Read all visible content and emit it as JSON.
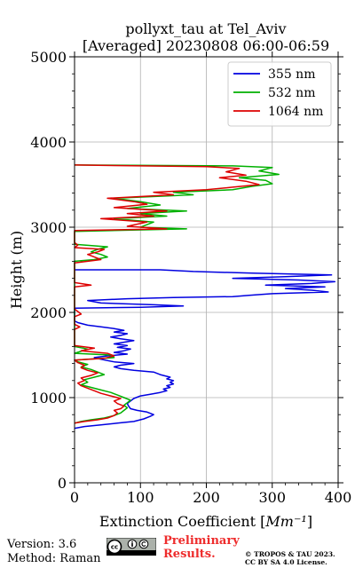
{
  "chart_data": {
    "type": "line",
    "title": "pollyxt_tau at Tel_Aviv",
    "subtitle": "[Averaged] 20230808 06:00-06:59",
    "xlabel": "Extinction Coefficient [Mm⁻¹]",
    "ylabel": "Height (m)",
    "xlim": [
      0,
      400
    ],
    "ylim": [
      0,
      5000
    ],
    "x_ticks": [
      0,
      100,
      200,
      300,
      400
    ],
    "y_ticks": [
      0,
      1000,
      2000,
      3000,
      4000,
      5000
    ],
    "grid": true,
    "legend_position": "top-right",
    "series": [
      {
        "name": "355 nm",
        "color": "#0000e0",
        "points": [
          [
            0,
            640
          ],
          [
            15,
            660
          ],
          [
            40,
            680
          ],
          [
            65,
            700
          ],
          [
            90,
            720
          ],
          [
            105,
            750
          ],
          [
            115,
            780
          ],
          [
            120,
            800
          ],
          [
            110,
            830
          ],
          [
            95,
            850
          ],
          [
            85,
            870
          ],
          [
            82,
            900
          ],
          [
            80,
            930
          ],
          [
            85,
            960
          ],
          [
            90,
            990
          ],
          [
            100,
            1020
          ],
          [
            115,
            1040
          ],
          [
            130,
            1060
          ],
          [
            140,
            1080
          ],
          [
            135,
            1100
          ],
          [
            145,
            1120
          ],
          [
            140,
            1140
          ],
          [
            150,
            1160
          ],
          [
            145,
            1180
          ],
          [
            150,
            1200
          ],
          [
            140,
            1220
          ],
          [
            145,
            1240
          ],
          [
            130,
            1270
          ],
          [
            120,
            1300
          ],
          [
            90,
            1320
          ],
          [
            70,
            1340
          ],
          [
            60,
            1360
          ],
          [
            70,
            1380
          ],
          [
            90,
            1400
          ],
          [
            60,
            1420
          ],
          [
            40,
            1450
          ],
          [
            30,
            1470
          ],
          [
            50,
            1490
          ],
          [
            80,
            1510
          ],
          [
            60,
            1530
          ],
          [
            75,
            1550
          ],
          [
            85,
            1570
          ],
          [
            65,
            1590
          ],
          [
            80,
            1610
          ],
          [
            60,
            1630
          ],
          [
            75,
            1650
          ],
          [
            90,
            1670
          ],
          [
            70,
            1690
          ],
          [
            55,
            1710
          ],
          [
            70,
            1730
          ],
          [
            80,
            1750
          ],
          [
            60,
            1770
          ],
          [
            75,
            1790
          ],
          [
            60,
            1810
          ],
          [
            40,
            1830
          ],
          [
            20,
            1850
          ],
          [
            5,
            1880
          ],
          [
            0,
            1900
          ],
          [
            0,
            2050
          ],
          [
            100,
            2060
          ],
          [
            165,
            2075
          ],
          [
            120,
            2090
          ],
          [
            40,
            2110
          ],
          [
            20,
            2140
          ],
          [
            80,
            2160
          ],
          [
            150,
            2175
          ],
          [
            240,
            2185
          ],
          [
            265,
            2200
          ],
          [
            300,
            2220
          ],
          [
            385,
            2240
          ],
          [
            360,
            2260
          ],
          [
            320,
            2280
          ],
          [
            380,
            2300
          ],
          [
            290,
            2320
          ],
          [
            360,
            2340
          ],
          [
            395,
            2360
          ],
          [
            340,
            2380
          ],
          [
            240,
            2400
          ],
          [
            320,
            2420
          ],
          [
            390,
            2440
          ],
          [
            270,
            2460
          ],
          [
            180,
            2480
          ],
          [
            130,
            2500
          ],
          [
            0,
            2500
          ]
        ]
      },
      {
        "name": "532 nm",
        "color": "#00b000",
        "points": [
          [
            0,
            700
          ],
          [
            10,
            720
          ],
          [
            25,
            740
          ],
          [
            45,
            760
          ],
          [
            60,
            790
          ],
          [
            70,
            820
          ],
          [
            75,
            850
          ],
          [
            80,
            880
          ],
          [
            75,
            910
          ],
          [
            80,
            940
          ],
          [
            85,
            970
          ],
          [
            75,
            1000
          ],
          [
            65,
            1030
          ],
          [
            55,
            1060
          ],
          [
            40,
            1090
          ],
          [
            25,
            1120
          ],
          [
            10,
            1150
          ],
          [
            20,
            1180
          ],
          [
            15,
            1210
          ],
          [
            30,
            1240
          ],
          [
            45,
            1270
          ],
          [
            35,
            1300
          ],
          [
            25,
            1330
          ],
          [
            10,
            1360
          ],
          [
            20,
            1390
          ],
          [
            5,
            1420
          ],
          [
            0,
            1440
          ],
          [
            60,
            1470
          ],
          [
            55,
            1500
          ],
          [
            0,
            1520
          ],
          [
            20,
            1570
          ],
          [
            0,
            1600
          ],
          [
            0,
            2600
          ],
          [
            30,
            2620
          ],
          [
            50,
            2650
          ],
          [
            40,
            2680
          ],
          [
            25,
            2710
          ],
          [
            35,
            2740
          ],
          [
            50,
            2770
          ],
          [
            0,
            2800
          ],
          [
            0,
            2950
          ],
          [
            170,
            2980
          ],
          [
            100,
            3000
          ],
          [
            120,
            3060
          ],
          [
            60,
            3100
          ],
          [
            140,
            3130
          ],
          [
            100,
            3160
          ],
          [
            170,
            3190
          ],
          [
            80,
            3220
          ],
          [
            130,
            3260
          ],
          [
            100,
            3300
          ],
          [
            60,
            3340
          ],
          [
            180,
            3380
          ],
          [
            150,
            3410
          ],
          [
            240,
            3440
          ],
          [
            270,
            3480
          ],
          [
            300,
            3510
          ],
          [
            290,
            3550
          ],
          [
            250,
            3580
          ],
          [
            310,
            3620
          ],
          [
            280,
            3660
          ],
          [
            300,
            3700
          ],
          [
            240,
            3720
          ],
          [
            0,
            3730
          ]
        ]
      },
      {
        "name": "1064 nm",
        "color": "#dd0000",
        "points": [
          [
            0,
            700
          ],
          [
            15,
            720
          ],
          [
            35,
            740
          ],
          [
            50,
            760
          ],
          [
            60,
            790
          ],
          [
            65,
            820
          ],
          [
            60,
            850
          ],
          [
            70,
            870
          ],
          [
            75,
            900
          ],
          [
            65,
            930
          ],
          [
            60,
            960
          ],
          [
            70,
            990
          ],
          [
            55,
            1020
          ],
          [
            40,
            1050
          ],
          [
            30,
            1080
          ],
          [
            20,
            1110
          ],
          [
            10,
            1140
          ],
          [
            5,
            1170
          ],
          [
            15,
            1200
          ],
          [
            10,
            1230
          ],
          [
            25,
            1260
          ],
          [
            35,
            1290
          ],
          [
            20,
            1320
          ],
          [
            10,
            1350
          ],
          [
            15,
            1380
          ],
          [
            5,
            1410
          ],
          [
            0,
            1440
          ],
          [
            45,
            1460
          ],
          [
            60,
            1490
          ],
          [
            50,
            1520
          ],
          [
            10,
            1550
          ],
          [
            30,
            1580
          ],
          [
            0,
            1610
          ],
          [
            0,
            1800
          ],
          [
            8,
            1830
          ],
          [
            0,
            1860
          ],
          [
            0,
            1950
          ],
          [
            10,
            1980
          ],
          [
            5,
            2010
          ],
          [
            0,
            2040
          ],
          [
            0,
            2300
          ],
          [
            25,
            2320
          ],
          [
            0,
            2350
          ],
          [
            0,
            2580
          ],
          [
            20,
            2600
          ],
          [
            40,
            2620
          ],
          [
            30,
            2650
          ],
          [
            20,
            2680
          ],
          [
            35,
            2710
          ],
          [
            45,
            2740
          ],
          [
            0,
            2760
          ],
          [
            5,
            2790
          ],
          [
            0,
            2820
          ],
          [
            0,
            2960
          ],
          [
            140,
            2980
          ],
          [
            80,
            3010
          ],
          [
            110,
            3060
          ],
          [
            40,
            3100
          ],
          [
            120,
            3130
          ],
          [
            80,
            3160
          ],
          [
            140,
            3190
          ],
          [
            60,
            3230
          ],
          [
            110,
            3270
          ],
          [
            90,
            3300
          ],
          [
            50,
            3340
          ],
          [
            150,
            3380
          ],
          [
            120,
            3410
          ],
          [
            200,
            3440
          ],
          [
            240,
            3470
          ],
          [
            280,
            3500
          ],
          [
            260,
            3540
          ],
          [
            220,
            3580
          ],
          [
            260,
            3610
          ],
          [
            230,
            3650
          ],
          [
            250,
            3690
          ],
          [
            200,
            3710
          ],
          [
            0,
            3730
          ]
        ]
      }
    ]
  },
  "footer": {
    "version": "Version: 3.6",
    "method": "Method: Raman",
    "preliminary": "Preliminary Results.",
    "copyright": "© TROPOS & TAU 2023. CC BY SA 4.0 License."
  }
}
